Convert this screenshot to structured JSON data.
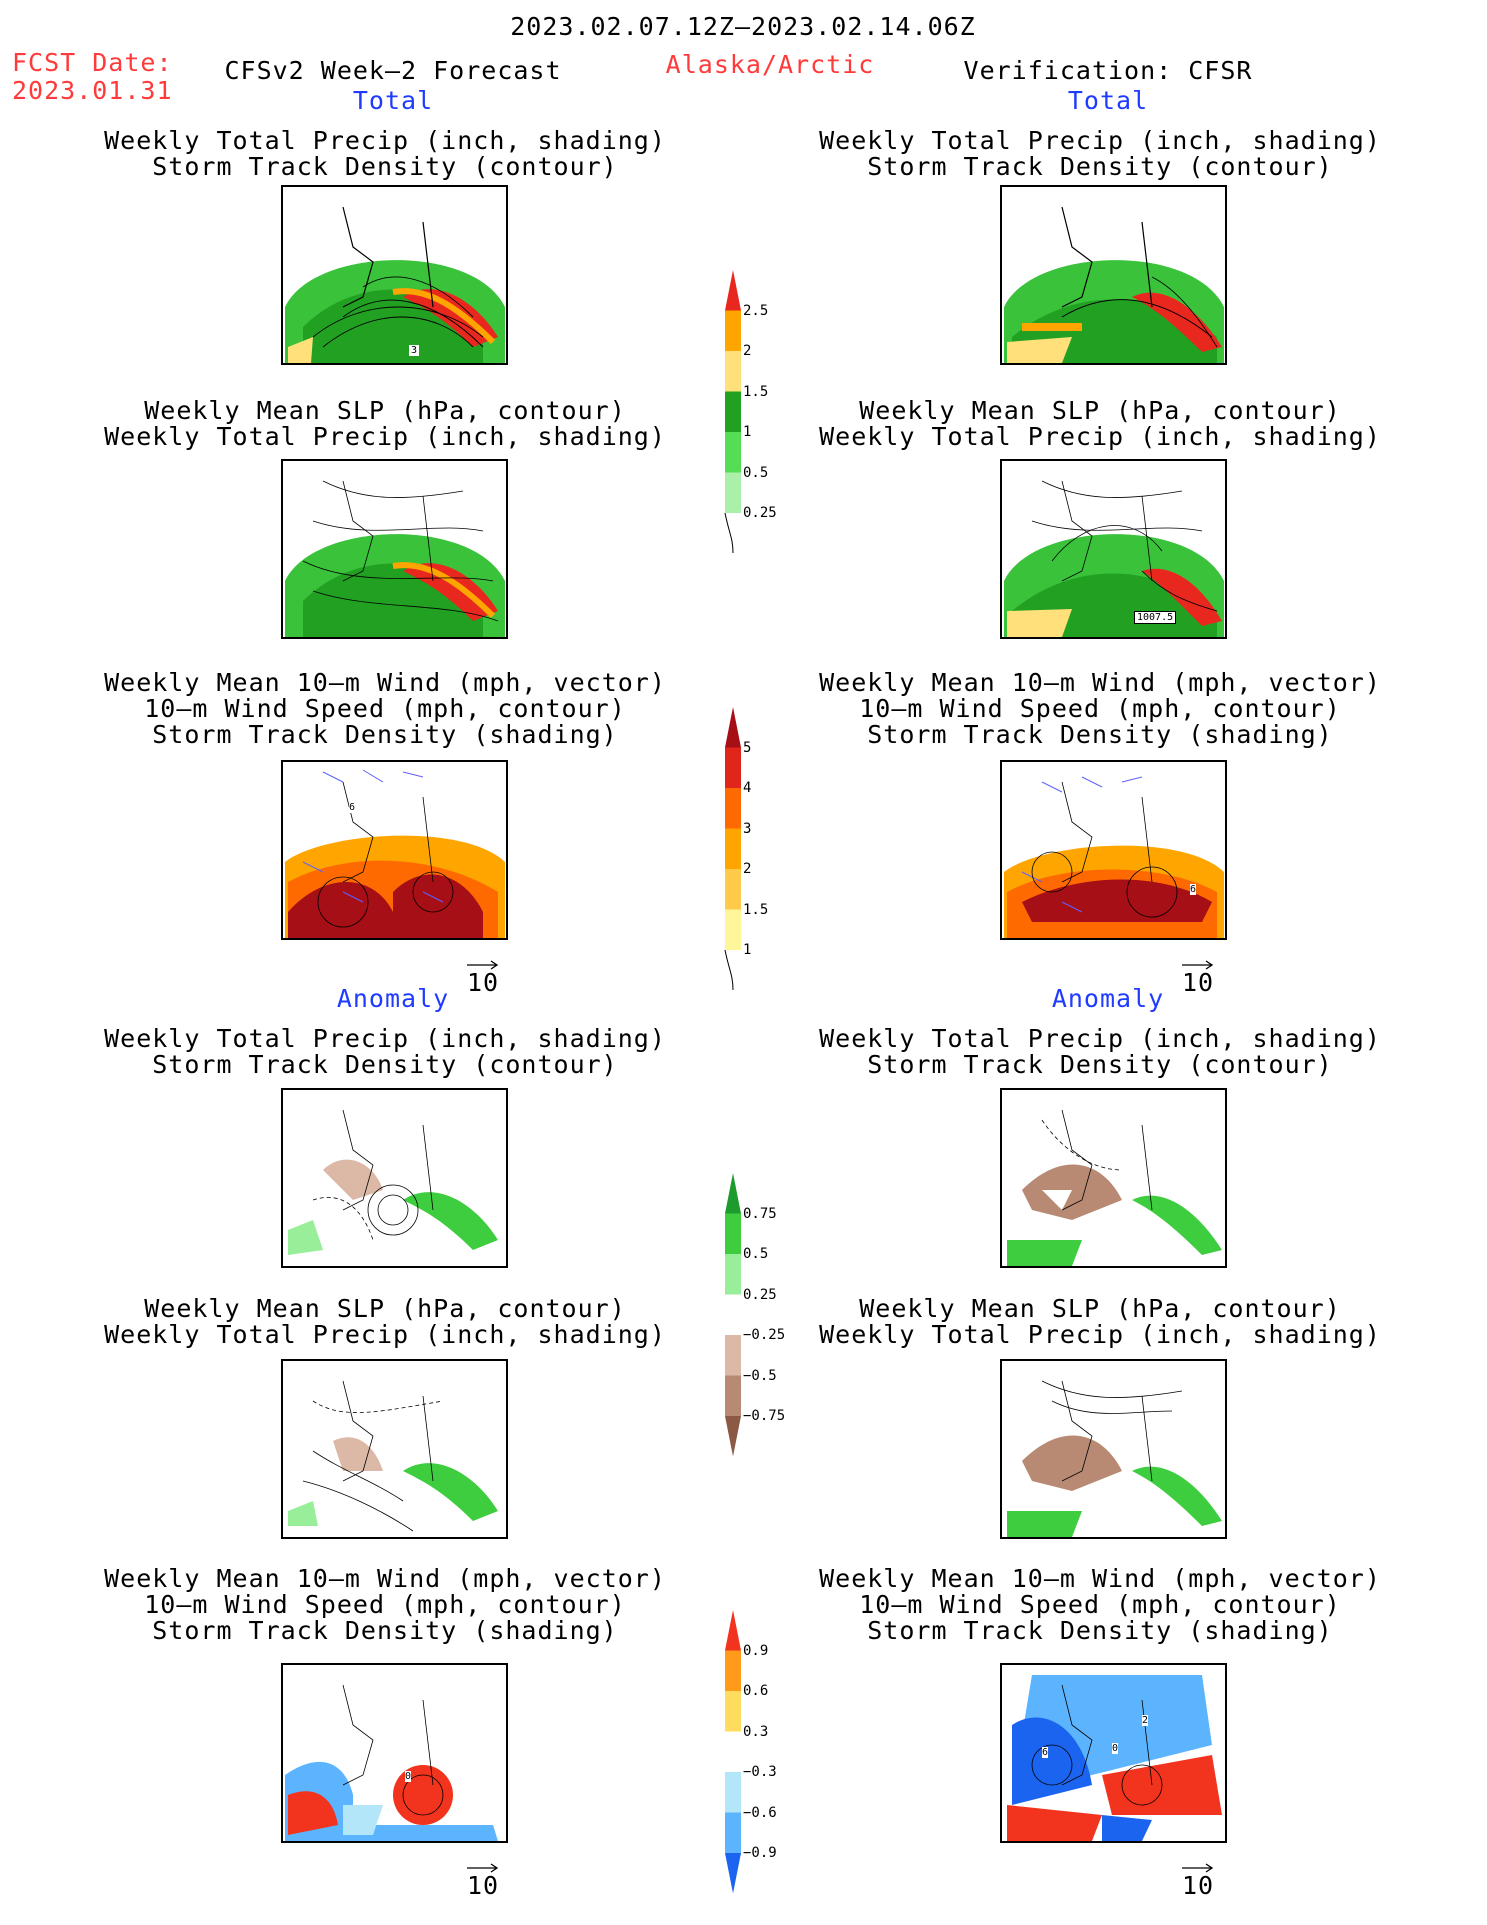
{
  "header": {
    "date_range": "2023.02.07.12Z–2023.02.14.06Z",
    "fcst_label": "FCST Date:",
    "fcst_date": "2023.01.31",
    "left_title": "CFSv2 Week–2 Forecast",
    "region": "Alaska/Arctic",
    "right_title": "Verification: CFSR"
  },
  "sections": {
    "total_label": "Total",
    "anomaly_label": "Anomaly"
  },
  "panel_titles": {
    "precip_storm": [
      "Weekly Total Precip (inch, shading)",
      "Storm Track Density (contour)"
    ],
    "slp_precip": [
      "Weekly Mean SLP (hPa, contour)",
      "Weekly Total Precip (inch, shading)"
    ],
    "wind_storm": [
      "Weekly Mean 10–m Wind (mph, vector)",
      "10–m Wind Speed (mph, contour)",
      "Storm Track Density (shading)"
    ]
  },
  "map_labels": {
    "fcst_total_precip": "3",
    "obs_total_slp": "1007.5",
    "fcst_total_wind": "6",
    "obs_total_wind": "6",
    "fcst_anom_wind": "0",
    "obs_anom_wind_a": "6",
    "obs_anom_wind_b": "0",
    "obs_anom_wind_c": "2"
  },
  "vector_reference": "10",
  "colorbars": {
    "total_precip": {
      "labels": [
        "2.5",
        "2",
        "1.5",
        "1",
        "0.5",
        "0.25"
      ],
      "colors": [
        "#e8281e",
        "#ffa500",
        "#ffe07a",
        "#22a022",
        "#55dd55",
        "#aaf0aa"
      ]
    },
    "total_storm": {
      "labels": [
        "5",
        "4",
        "3",
        "2",
        "1.5",
        "1"
      ],
      "colors": [
        "#a50f15",
        "#e0261a",
        "#ff6a00",
        "#ffa500",
        "#ffc94a",
        "#fff59a"
      ]
    },
    "anom_precip": {
      "labels": [
        "0.75",
        "0.5",
        "0.25",
        "−0.25",
        "−0.5",
        "−0.75"
      ],
      "colors": [
        "#1e9b2d",
        "#3ecd3e",
        "#99ee99",
        "#ffffff",
        "#dcb9a6",
        "#b88a74",
        "#8c5a44"
      ]
    },
    "anom_storm": {
      "labels": [
        "0.9",
        "0.6",
        "0.3",
        "−0.3",
        "−0.6",
        "−0.9"
      ],
      "colors": [
        "#f2331d",
        "#ff9a1a",
        "#ffdc5e",
        "#ffffff",
        "#b4e6fa",
        "#5cb4ff",
        "#1a64f0"
      ]
    }
  }
}
